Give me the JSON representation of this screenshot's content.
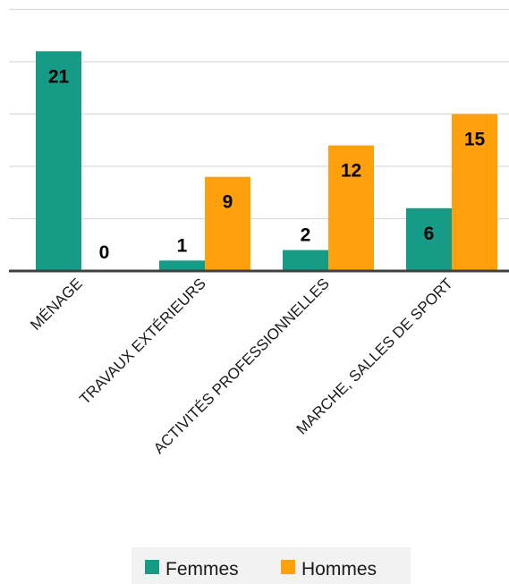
{
  "chart_data": {
    "type": "bar",
    "categories": [
      "MÉNAGE",
      "TRAVAUX EXTÉRIEURS",
      "ACTIVITÉS PROFESSIONNELLES",
      "MARCHE, SALLES DE SPORT"
    ],
    "series": [
      {
        "name": "Femmes",
        "color": "#169C86",
        "values": [
          21,
          1,
          2,
          6
        ]
      },
      {
        "name": "Hommes",
        "color": "#FFA00C",
        "values": [
          0,
          9,
          12,
          15
        ]
      }
    ],
    "ylim": [
      0,
      25
    ],
    "ytick_step": 5,
    "grid": true,
    "legend": "bottom",
    "data_labels": true
  }
}
